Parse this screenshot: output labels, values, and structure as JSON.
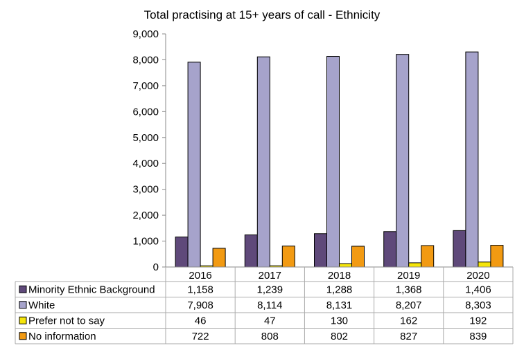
{
  "chart_data": {
    "type": "bar",
    "title": "Total practising at 15+ years of call - Ethnicity",
    "xlabel": "",
    "ylabel": "",
    "ylim": [
      0,
      9000
    ],
    "yticks": [
      "0",
      "1,000",
      "2,000",
      "3,000",
      "4,000",
      "5,000",
      "6,000",
      "7,000",
      "8,000",
      "9,000"
    ],
    "categories": [
      "2016",
      "2017",
      "2018",
      "2019",
      "2020"
    ],
    "grid": false,
    "legend": "data-table-left",
    "series": [
      {
        "name": "Minority Ethnic Background",
        "color": "#5f497a",
        "values": [
          1158,
          1239,
          1288,
          1368,
          1406
        ],
        "labels": [
          "1,158",
          "1,239",
          "1,288",
          "1,368",
          "1,406"
        ]
      },
      {
        "name": "White",
        "color": "#a6a3cb",
        "values": [
          7908,
          8114,
          8131,
          8207,
          8303
        ],
        "labels": [
          "7,908",
          "8,114",
          "8,131",
          "8,207",
          "8,303"
        ]
      },
      {
        "name": "Prefer not to say",
        "color": "#f5e50a",
        "values": [
          46,
          47,
          130,
          162,
          192
        ],
        "labels": [
          "46",
          "47",
          "130",
          "162",
          "192"
        ]
      },
      {
        "name": "No information",
        "color": "#f29a12",
        "values": [
          722,
          808,
          802,
          827,
          839
        ],
        "labels": [
          "722",
          "808",
          "802",
          "827",
          "839"
        ]
      }
    ]
  }
}
